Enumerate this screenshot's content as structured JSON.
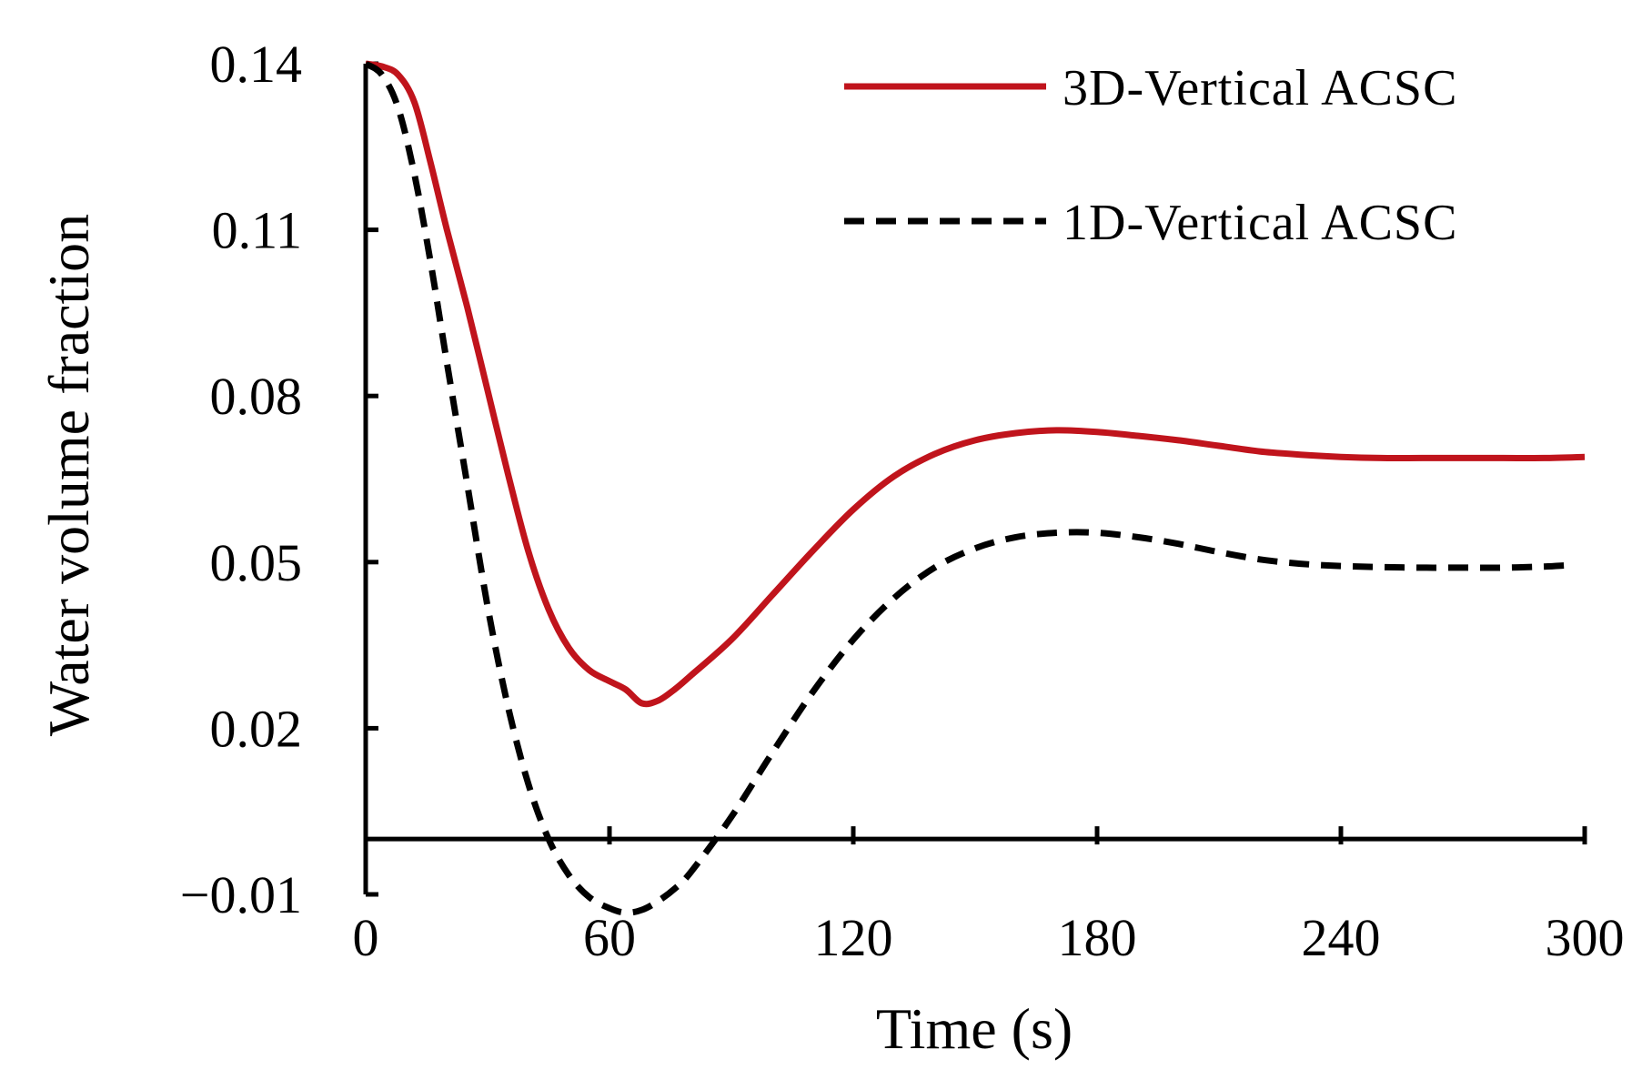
{
  "chart_data": {
    "type": "line",
    "title": "",
    "xlabel": "Time (s)",
    "ylabel": "Water volume fraction",
    "xlim": [
      0,
      300
    ],
    "ylim": [
      -0.01,
      0.14
    ],
    "x_axis_crosses_y_at": 0,
    "xticks": [
      0,
      60,
      120,
      180,
      240,
      300
    ],
    "xtick_labels": [
      "0",
      "60",
      "120",
      "180",
      "240",
      "300"
    ],
    "yticks": [
      0.14,
      0.11,
      0.08,
      0.05,
      0.02,
      -0.01
    ],
    "ytick_labels": [
      "0.14",
      "0.11",
      "0.08",
      "0.05",
      "0.02",
      "−0.01"
    ],
    "grid": false,
    "legend_position": "top-right",
    "series": [
      {
        "name": "3D-Vertical ACSC",
        "color": "#c0141c",
        "style": "solid",
        "x": [
          0,
          4,
          8,
          12,
          16,
          20,
          25,
          30,
          35,
          40,
          45,
          50,
          55,
          60,
          64,
          68,
          72,
          76,
          80,
          90,
          100,
          110,
          120,
          130,
          140,
          150,
          160,
          170,
          180,
          190,
          200,
          210,
          220,
          230,
          240,
          250,
          260,
          270,
          280,
          290,
          300
        ],
        "y": [
          0.14,
          0.1395,
          0.138,
          0.133,
          0.122,
          0.11,
          0.096,
          0.081,
          0.066,
          0.052,
          0.0415,
          0.0345,
          0.0305,
          0.0285,
          0.027,
          0.0245,
          0.025,
          0.027,
          0.0295,
          0.036,
          0.044,
          0.052,
          0.0595,
          0.0655,
          0.0695,
          0.072,
          0.0733,
          0.0738,
          0.0735,
          0.0728,
          0.072,
          0.071,
          0.07,
          0.0694,
          0.069,
          0.0688,
          0.0688,
          0.0688,
          0.0688,
          0.0688,
          0.069
        ]
      },
      {
        "name": "1D-Vertical ACSC",
        "color": "#000000",
        "style": "dashed",
        "x": [
          0,
          4,
          8,
          12,
          16,
          20,
          25,
          30,
          35,
          40,
          45,
          50,
          55,
          60,
          64,
          68,
          72,
          76,
          80,
          90,
          100,
          110,
          120,
          130,
          140,
          150,
          160,
          170,
          180,
          190,
          200,
          210,
          220,
          230,
          240,
          250,
          260,
          270,
          280,
          290,
          295
        ],
        "y": [
          0.14,
          0.138,
          0.132,
          0.12,
          0.104,
          0.086,
          0.064,
          0.042,
          0.024,
          0.01,
          0.0,
          -0.0065,
          -0.0105,
          -0.0125,
          -0.0133,
          -0.0128,
          -0.0112,
          -0.009,
          -0.006,
          0.004,
          0.0155,
          0.0265,
          0.036,
          0.0435,
          0.049,
          0.0525,
          0.0545,
          0.0553,
          0.0553,
          0.0545,
          0.0533,
          0.0518,
          0.0505,
          0.0497,
          0.0493,
          0.0491,
          0.049,
          0.049,
          0.049,
          0.0492,
          0.0494
        ]
      }
    ]
  }
}
